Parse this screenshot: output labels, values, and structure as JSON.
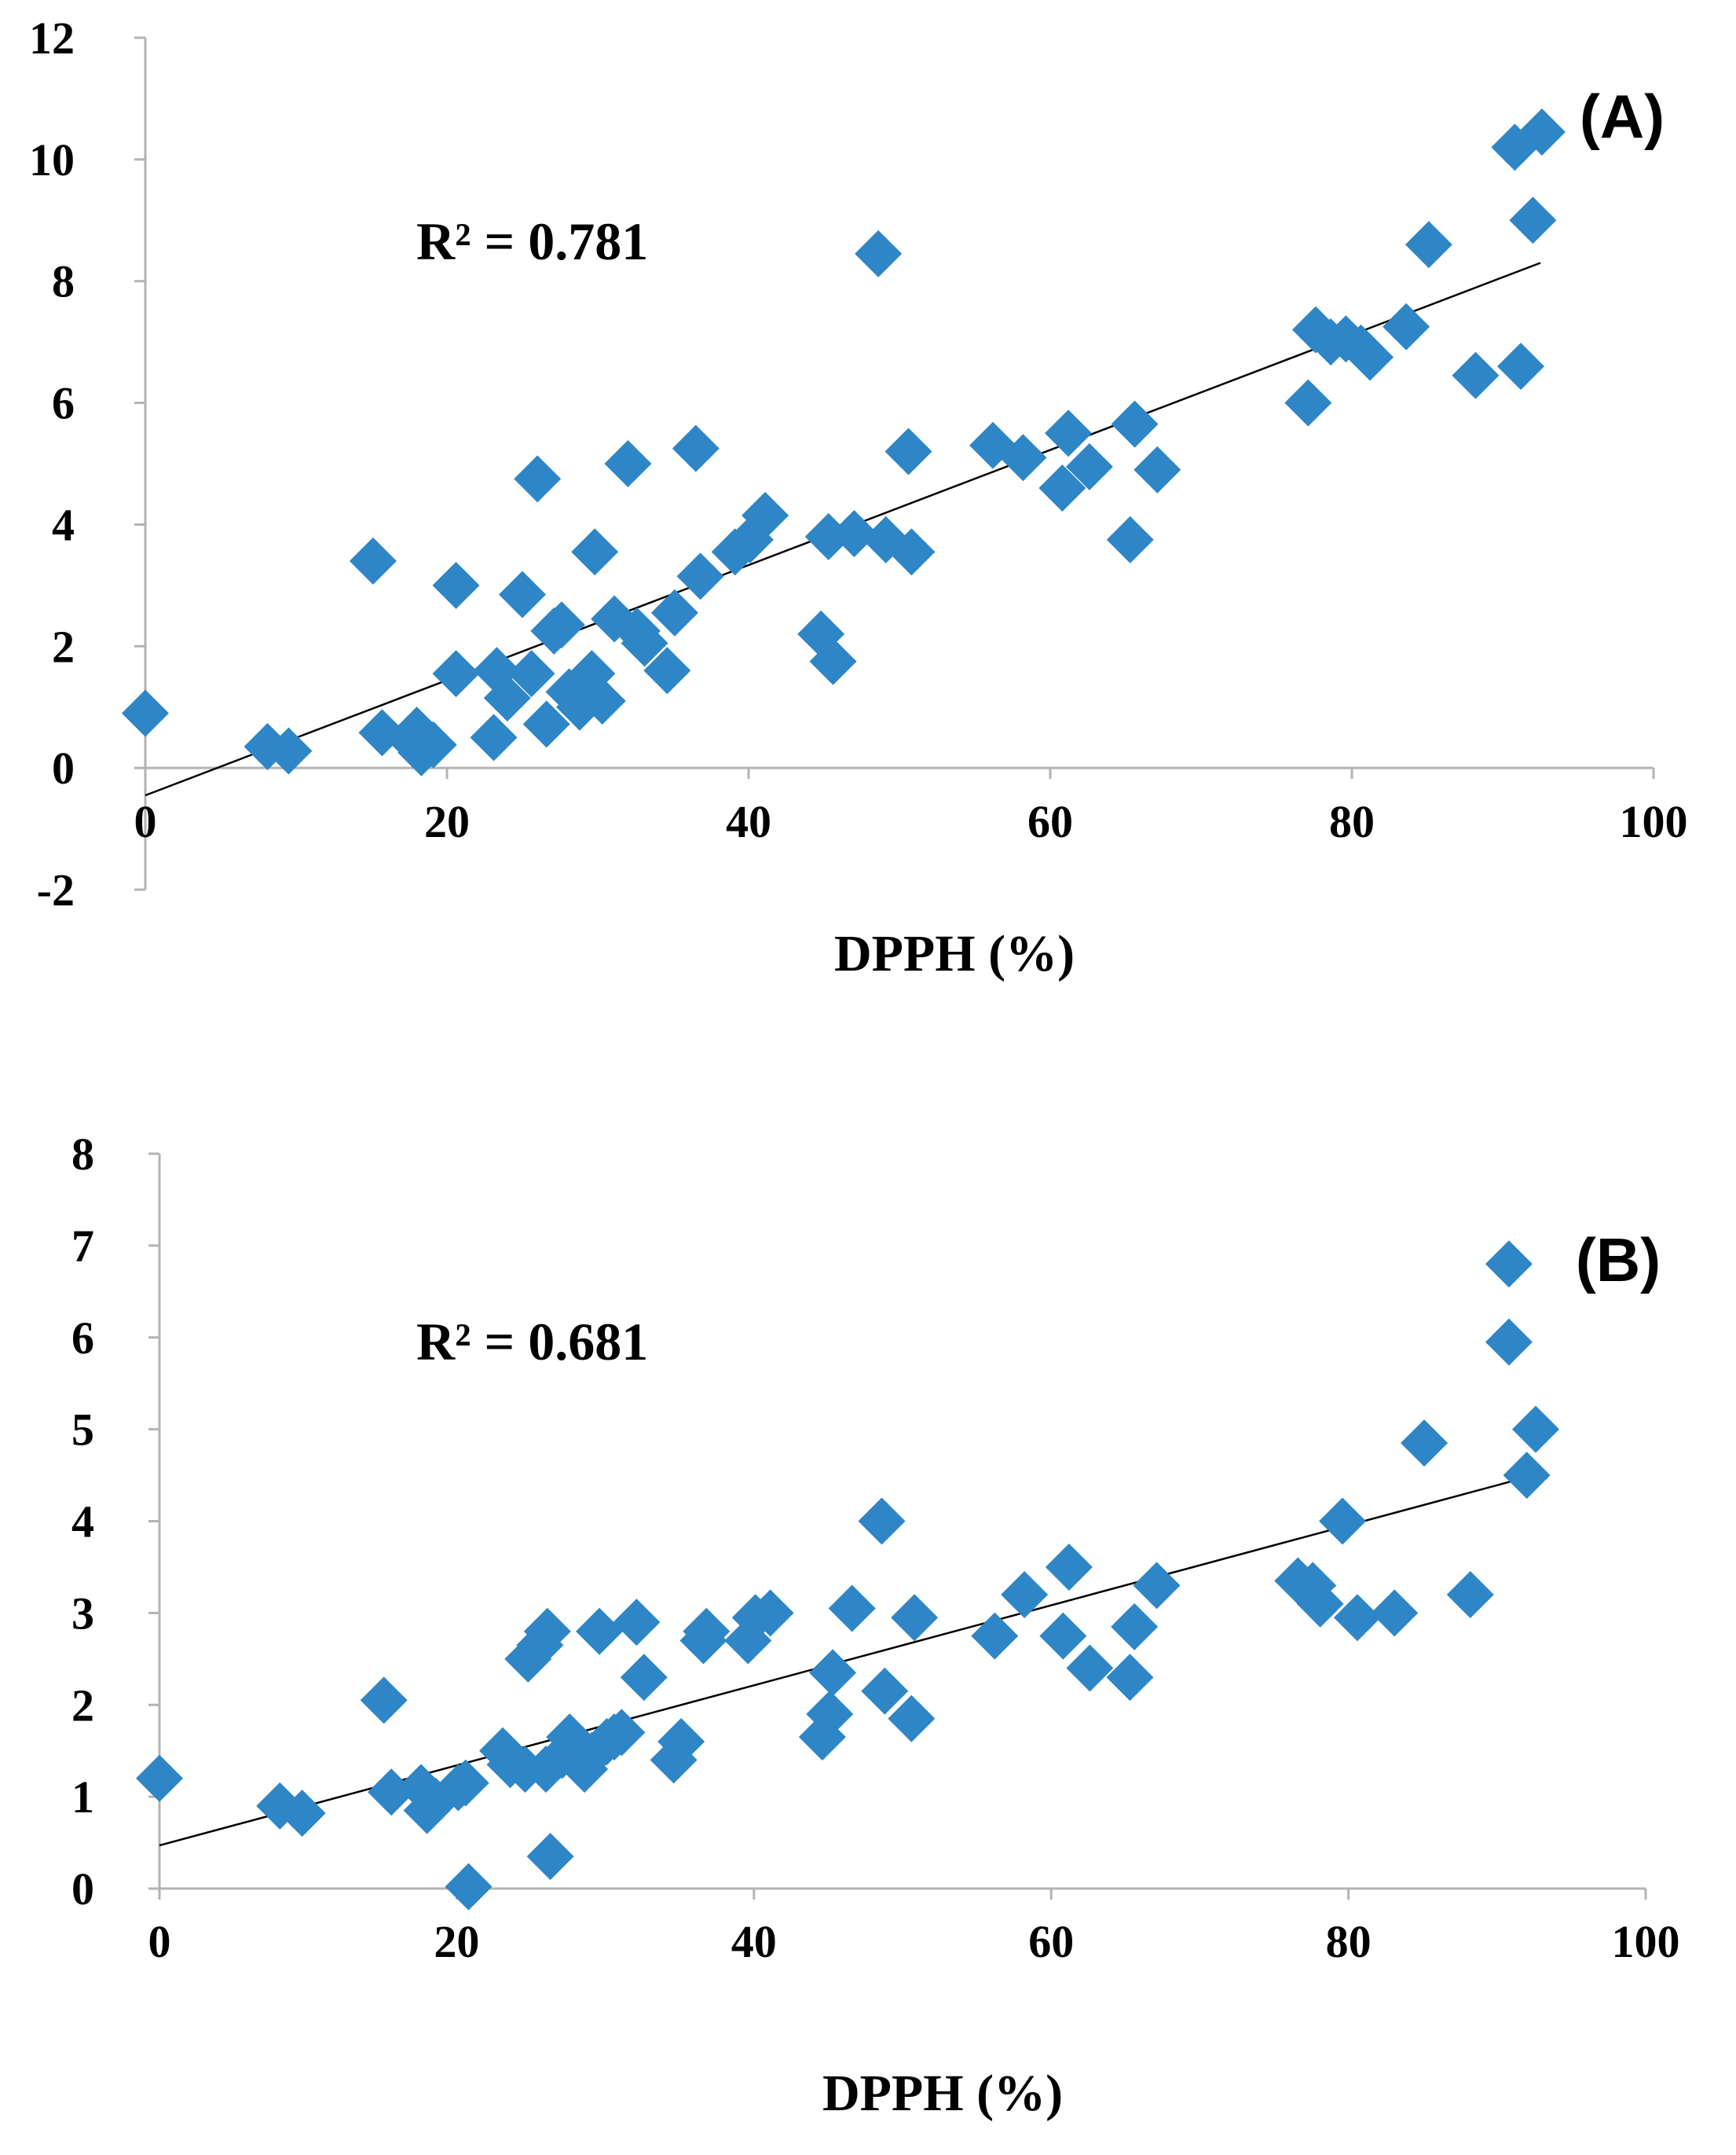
{
  "chart_data": [
    {
      "type": "scatter",
      "panel_label": "(A)",
      "annotation": "R² = 0.781",
      "title": "",
      "xlabel": "DPPH (%)",
      "ylabel": "",
      "xlim": [
        0,
        100
      ],
      "ylim": [
        -2,
        12
      ],
      "x_ticks": [
        "0",
        "20",
        "40",
        "60",
        "80",
        "100"
      ],
      "y_ticks": [
        "-2",
        "0",
        "2",
        "4",
        "6",
        "8",
        "10",
        "12"
      ],
      "grid": false,
      "marker": "diamond",
      "marker_color": "#2e86c6",
      "trendline": {
        "x1": 0,
        "y1": -0.45,
        "x2": 92.5,
        "y2": 8.3,
        "color": "#000000"
      },
      "points": [
        [
          0,
          0.9
        ],
        [
          8.1,
          0.35
        ],
        [
          9.5,
          0.28
        ],
        [
          15.1,
          3.4
        ],
        [
          15.7,
          0.58
        ],
        [
          17.6,
          0.45
        ],
        [
          18.0,
          0.62
        ],
        [
          18.3,
          0.25
        ],
        [
          19.1,
          0.38
        ],
        [
          20.6,
          3.0
        ],
        [
          20.6,
          1.55
        ],
        [
          23.1,
          0.5
        ],
        [
          23.3,
          1.6
        ],
        [
          24.0,
          1.15
        ],
        [
          25.0,
          2.85
        ],
        [
          25.6,
          1.55
        ],
        [
          26.0,
          4.75
        ],
        [
          26.6,
          0.72
        ],
        [
          27.1,
          2.25
        ],
        [
          27.6,
          2.35
        ],
        [
          28.1,
          1.25
        ],
        [
          28.8,
          1.0
        ],
        [
          29.6,
          1.55
        ],
        [
          29.8,
          3.55
        ],
        [
          30.3,
          1.1
        ],
        [
          31.1,
          2.45
        ],
        [
          32.0,
          5.0
        ],
        [
          32.6,
          2.25
        ],
        [
          33.1,
          2.05
        ],
        [
          34.6,
          1.6
        ],
        [
          35.1,
          2.55
        ],
        [
          36.5,
          5.25
        ],
        [
          36.8,
          3.15
        ],
        [
          39.1,
          3.55
        ],
        [
          40.1,
          3.75
        ],
        [
          41.1,
          4.15
        ],
        [
          44.8,
          2.2
        ],
        [
          45.3,
          3.8
        ],
        [
          45.6,
          1.75
        ],
        [
          47.0,
          3.85
        ],
        [
          48.6,
          8.45
        ],
        [
          49.1,
          3.75
        ],
        [
          50.6,
          5.2
        ],
        [
          50.8,
          3.55
        ],
        [
          56.2,
          5.3
        ],
        [
          58.2,
          5.1
        ],
        [
          60.8,
          4.6
        ],
        [
          61.2,
          5.5
        ],
        [
          62.6,
          4.95
        ],
        [
          65.3,
          3.75
        ],
        [
          65.6,
          5.65
        ],
        [
          67.1,
          4.9
        ],
        [
          77.1,
          6.0
        ],
        [
          77.6,
          7.2
        ],
        [
          78.6,
          7.0
        ],
        [
          79.6,
          7.05
        ],
        [
          80.6,
          6.9
        ],
        [
          81.2,
          6.75
        ],
        [
          83.6,
          7.25
        ],
        [
          85.1,
          8.6
        ],
        [
          88.2,
          6.45
        ],
        [
          90.8,
          10.2
        ],
        [
          91.2,
          6.6
        ],
        [
          92.0,
          9.0
        ],
        [
          92.6,
          10.45
        ]
      ]
    },
    {
      "type": "scatter",
      "panel_label": "(B)",
      "annotation": "R² = 0.681",
      "title": "",
      "xlabel": "DPPH (%)",
      "ylabel": "",
      "xlim": [
        0,
        100
      ],
      "ylim": [
        0,
        8
      ],
      "x_ticks": [
        "0",
        "20",
        "40",
        "60",
        "80",
        "100"
      ],
      "y_ticks": [
        "0",
        "1",
        "2",
        "3",
        "4",
        "5",
        "6",
        "7",
        "8"
      ],
      "grid": false,
      "marker": "diamond",
      "marker_color": "#2e86c6",
      "trendline": {
        "x1": 0,
        "y1": 0.47,
        "x2": 92.5,
        "y2": 4.5,
        "color": "#000000"
      },
      "points": [
        [
          0,
          1.2
        ],
        [
          8.1,
          0.9
        ],
        [
          9.6,
          0.82
        ],
        [
          15.1,
          2.05
        ],
        [
          15.6,
          1.05
        ],
        [
          17.6,
          1.1
        ],
        [
          18.0,
          0.85
        ],
        [
          18.6,
          0.95
        ],
        [
          20.1,
          1.1
        ],
        [
          20.6,
          1.15
        ],
        [
          20.8,
          0.02
        ],
        [
          23.1,
          1.5
        ],
        [
          23.6,
          1.35
        ],
        [
          24.6,
          1.3
        ],
        [
          24.8,
          2.5
        ],
        [
          25.6,
          2.65
        ],
        [
          26.0,
          1.3
        ],
        [
          26.1,
          2.8
        ],
        [
          26.3,
          0.35
        ],
        [
          27.1,
          1.45
        ],
        [
          27.6,
          1.65
        ],
        [
          28.1,
          1.55
        ],
        [
          28.6,
          1.3
        ],
        [
          29.1,
          1.45
        ],
        [
          29.6,
          2.8
        ],
        [
          30.1,
          1.6
        ],
        [
          30.6,
          1.65
        ],
        [
          31.1,
          1.7
        ],
        [
          32.1,
          2.9
        ],
        [
          32.6,
          2.3
        ],
        [
          34.6,
          1.4
        ],
        [
          35.1,
          1.6
        ],
        [
          36.6,
          2.7
        ],
        [
          36.8,
          2.8
        ],
        [
          39.6,
          2.7
        ],
        [
          40.1,
          2.95
        ],
        [
          41.1,
          3.0
        ],
        [
          44.6,
          1.65
        ],
        [
          45.1,
          1.9
        ],
        [
          45.3,
          2.35
        ],
        [
          46.6,
          3.05
        ],
        [
          48.6,
          4.0
        ],
        [
          48.8,
          2.15
        ],
        [
          50.6,
          1.85
        ],
        [
          50.8,
          2.95
        ],
        [
          56.2,
          2.75
        ],
        [
          58.2,
          3.2
        ],
        [
          60.8,
          2.75
        ],
        [
          61.2,
          3.5
        ],
        [
          62.6,
          2.4
        ],
        [
          65.3,
          2.3
        ],
        [
          65.6,
          2.85
        ],
        [
          67.1,
          3.3
        ],
        [
          76.6,
          3.35
        ],
        [
          77.6,
          3.3
        ],
        [
          78.1,
          3.1
        ],
        [
          79.6,
          4.0
        ],
        [
          80.6,
          2.95
        ],
        [
          83.1,
          3.0
        ],
        [
          85.1,
          4.85
        ],
        [
          88.2,
          3.2
        ],
        [
          90.8,
          6.8
        ],
        [
          90.8,
          5.95
        ],
        [
          92.0,
          4.5
        ],
        [
          92.6,
          5.0
        ]
      ]
    }
  ]
}
